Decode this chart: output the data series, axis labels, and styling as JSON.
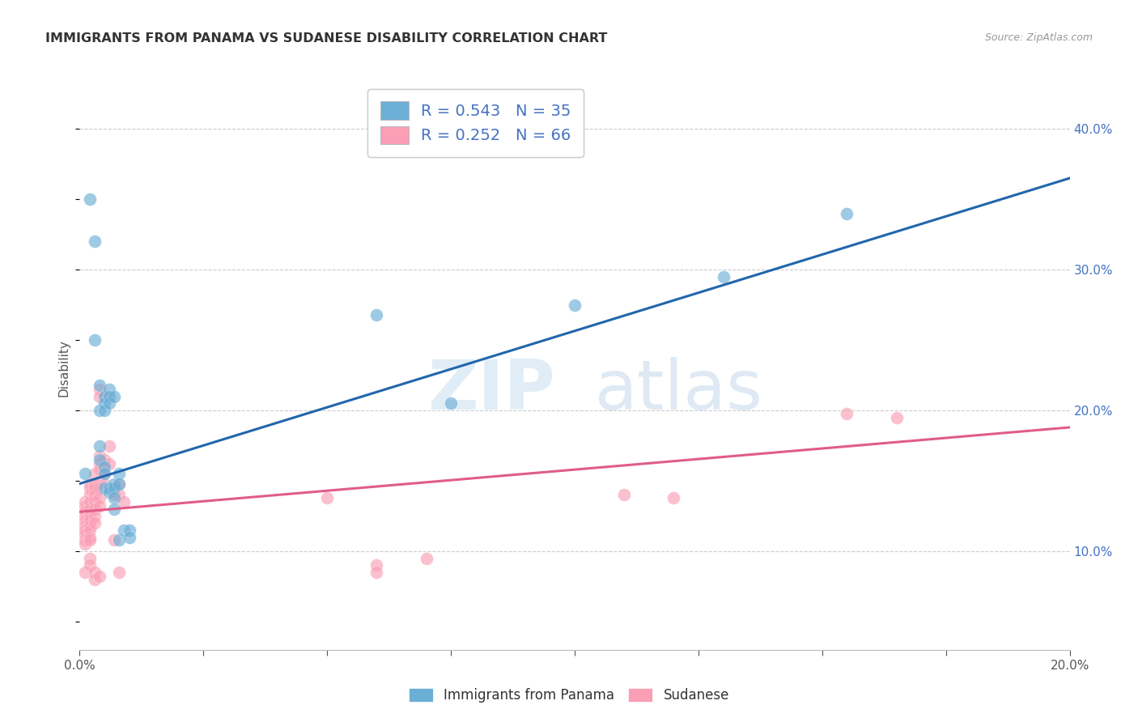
{
  "title": "IMMIGRANTS FROM PANAMA VS SUDANESE DISABILITY CORRELATION CHART",
  "source": "Source: ZipAtlas.com",
  "ylabel": "Disability",
  "xlim": [
    0.0,
    0.2
  ],
  "ylim": [
    0.03,
    0.43
  ],
  "yticks_right": [
    0.1,
    0.2,
    0.3,
    0.4
  ],
  "ytick_labels_right": [
    "10.0%",
    "20.0%",
    "30.0%",
    "40.0%"
  ],
  "xticks": [
    0.0,
    0.025,
    0.05,
    0.075,
    0.1,
    0.125,
    0.15,
    0.175,
    0.2
  ],
  "xtick_labels_show": {
    "0.0": "0.0%",
    "0.2": "20.0%"
  },
  "blue_label": "Immigrants from Panama",
  "pink_label": "Sudanese",
  "blue_R": 0.543,
  "blue_N": 35,
  "pink_R": 0.252,
  "pink_N": 66,
  "blue_color": "#6baed6",
  "pink_color": "#fa9fb5",
  "blue_line_color": "#2166ac",
  "pink_line_color": "#e05c8a",
  "watermark_zip": "ZIP",
  "watermark_atlas": "atlas",
  "blue_points": [
    [
      0.001,
      0.155
    ],
    [
      0.002,
      0.35
    ],
    [
      0.003,
      0.32
    ],
    [
      0.003,
      0.25
    ],
    [
      0.004,
      0.218
    ],
    [
      0.004,
      0.2
    ],
    [
      0.004,
      0.175
    ],
    [
      0.004,
      0.165
    ],
    [
      0.005,
      0.21
    ],
    [
      0.005,
      0.205
    ],
    [
      0.005,
      0.2
    ],
    [
      0.005,
      0.16
    ],
    [
      0.005,
      0.155
    ],
    [
      0.005,
      0.145
    ],
    [
      0.006,
      0.215
    ],
    [
      0.006,
      0.21
    ],
    [
      0.006,
      0.205
    ],
    [
      0.006,
      0.145
    ],
    [
      0.006,
      0.142
    ],
    [
      0.007,
      0.21
    ],
    [
      0.007,
      0.148
    ],
    [
      0.007,
      0.145
    ],
    [
      0.007,
      0.138
    ],
    [
      0.007,
      0.13
    ],
    [
      0.008,
      0.155
    ],
    [
      0.008,
      0.148
    ],
    [
      0.008,
      0.108
    ],
    [
      0.009,
      0.115
    ],
    [
      0.01,
      0.115
    ],
    [
      0.01,
      0.11
    ],
    [
      0.06,
      0.268
    ],
    [
      0.075,
      0.205
    ],
    [
      0.1,
      0.275
    ],
    [
      0.13,
      0.295
    ],
    [
      0.155,
      0.34
    ]
  ],
  "pink_points": [
    [
      0.001,
      0.135
    ],
    [
      0.001,
      0.132
    ],
    [
      0.001,
      0.128
    ],
    [
      0.001,
      0.125
    ],
    [
      0.001,
      0.122
    ],
    [
      0.001,
      0.118
    ],
    [
      0.001,
      0.115
    ],
    [
      0.001,
      0.112
    ],
    [
      0.001,
      0.108
    ],
    [
      0.001,
      0.105
    ],
    [
      0.001,
      0.085
    ],
    [
      0.002,
      0.148
    ],
    [
      0.002,
      0.145
    ],
    [
      0.002,
      0.14
    ],
    [
      0.002,
      0.135
    ],
    [
      0.002,
      0.13
    ],
    [
      0.002,
      0.125
    ],
    [
      0.002,
      0.122
    ],
    [
      0.002,
      0.118
    ],
    [
      0.002,
      0.115
    ],
    [
      0.002,
      0.11
    ],
    [
      0.002,
      0.108
    ],
    [
      0.002,
      0.095
    ],
    [
      0.002,
      0.09
    ],
    [
      0.003,
      0.155
    ],
    [
      0.003,
      0.148
    ],
    [
      0.003,
      0.145
    ],
    [
      0.003,
      0.14
    ],
    [
      0.003,
      0.135
    ],
    [
      0.003,
      0.13
    ],
    [
      0.003,
      0.125
    ],
    [
      0.003,
      0.12
    ],
    [
      0.003,
      0.085
    ],
    [
      0.003,
      0.08
    ],
    [
      0.004,
      0.215
    ],
    [
      0.004,
      0.21
    ],
    [
      0.004,
      0.168
    ],
    [
      0.004,
      0.162
    ],
    [
      0.004,
      0.158
    ],
    [
      0.004,
      0.15
    ],
    [
      0.004,
      0.145
    ],
    [
      0.004,
      0.138
    ],
    [
      0.004,
      0.132
    ],
    [
      0.004,
      0.082
    ],
    [
      0.005,
      0.21
    ],
    [
      0.005,
      0.165
    ],
    [
      0.005,
      0.16
    ],
    [
      0.005,
      0.155
    ],
    [
      0.005,
      0.148
    ],
    [
      0.006,
      0.175
    ],
    [
      0.006,
      0.162
    ],
    [
      0.007,
      0.145
    ],
    [
      0.007,
      0.14
    ],
    [
      0.007,
      0.108
    ],
    [
      0.008,
      0.148
    ],
    [
      0.008,
      0.14
    ],
    [
      0.008,
      0.085
    ],
    [
      0.009,
      0.135
    ],
    [
      0.05,
      0.138
    ],
    [
      0.06,
      0.09
    ],
    [
      0.06,
      0.085
    ],
    [
      0.07,
      0.095
    ],
    [
      0.11,
      0.14
    ],
    [
      0.12,
      0.138
    ],
    [
      0.155,
      0.198
    ],
    [
      0.165,
      0.195
    ]
  ],
  "blue_line_x": [
    0.0,
    0.2
  ],
  "blue_line_y": [
    0.148,
    0.365
  ],
  "pink_line_x": [
    0.0,
    0.2
  ],
  "pink_line_y": [
    0.128,
    0.188
  ]
}
